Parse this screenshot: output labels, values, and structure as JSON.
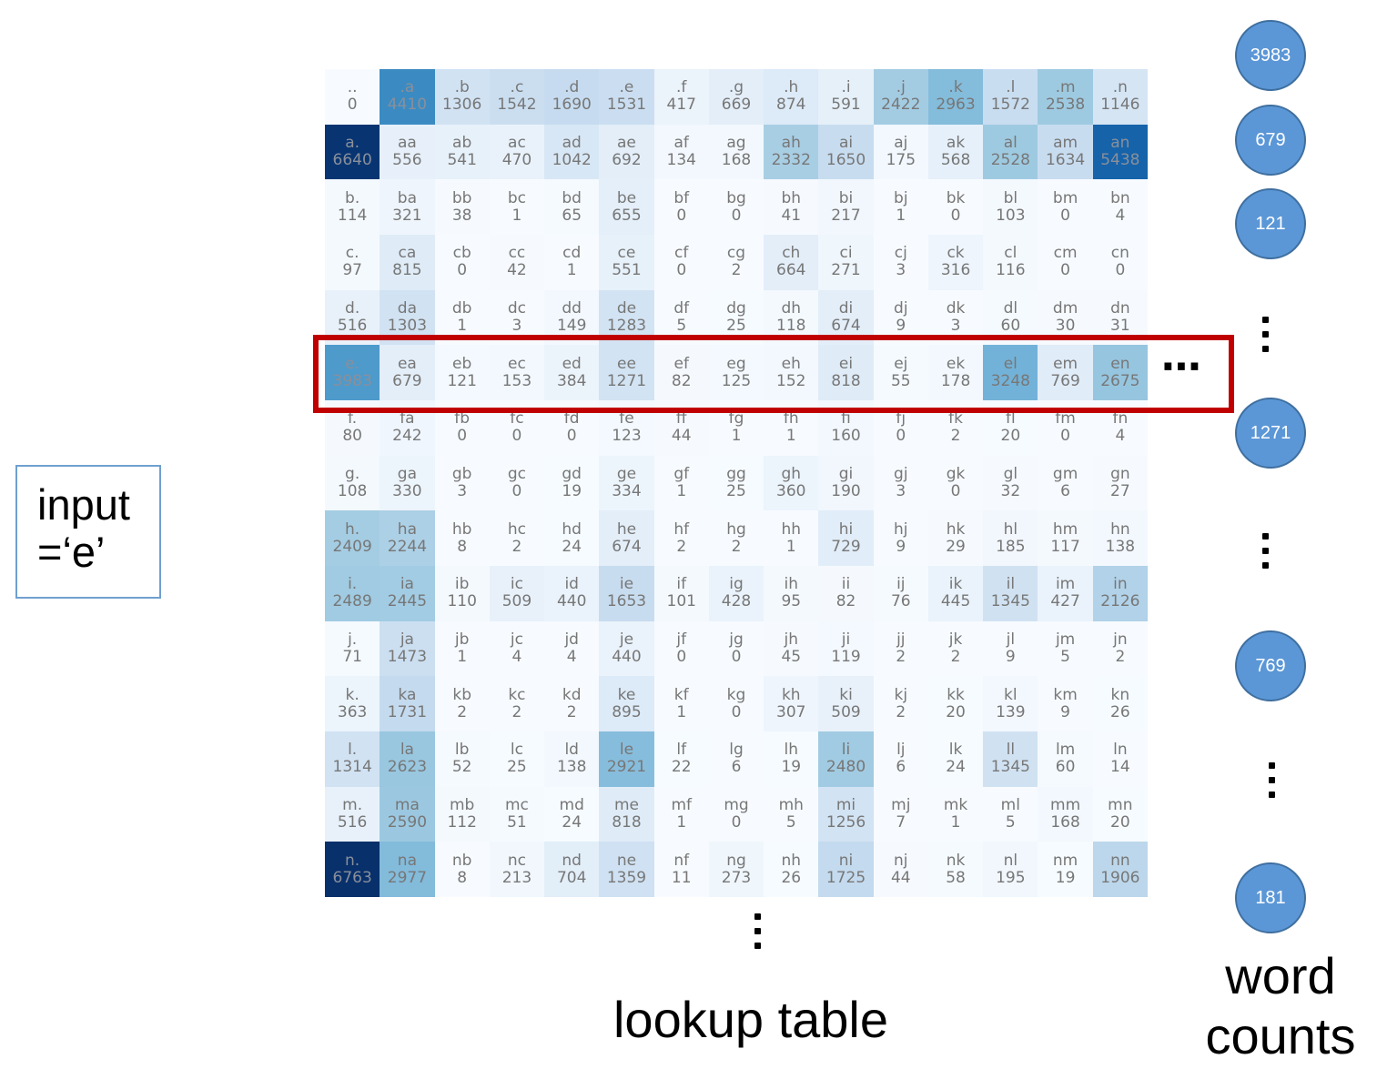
{
  "lookup_table": {
    "row_chars": [
      ".",
      "a",
      "b",
      "c",
      "d",
      "e",
      "f",
      "g",
      "h",
      "i",
      "j",
      "k",
      "l",
      "m",
      "n"
    ],
    "col_chars": [
      ".",
      "a",
      "b",
      "c",
      "d",
      "e",
      "f",
      "g",
      "h",
      "i",
      "j",
      "k",
      "l",
      "m",
      "n"
    ],
    "highlighted_row_label": "e",
    "counts": [
      [
        0,
        4410,
        1306,
        1542,
        1690,
        1531,
        417,
        669,
        874,
        591,
        2422,
        2963,
        1572,
        2538,
        1146
      ],
      [
        6640,
        556,
        541,
        470,
        1042,
        692,
        134,
        168,
        2332,
        1650,
        175,
        568,
        2528,
        1634,
        5438
      ],
      [
        114,
        321,
        38,
        1,
        65,
        655,
        0,
        0,
        41,
        217,
        1,
        0,
        103,
        0,
        4
      ],
      [
        97,
        815,
        0,
        42,
        1,
        551,
        0,
        2,
        664,
        271,
        3,
        316,
        116,
        0,
        0
      ],
      [
        516,
        1303,
        1,
        3,
        149,
        1283,
        5,
        25,
        118,
        674,
        9,
        3,
        60,
        30,
        31
      ],
      [
        3983,
        679,
        121,
        153,
        384,
        1271,
        82,
        125,
        152,
        818,
        55,
        178,
        3248,
        769,
        2675
      ],
      [
        80,
        242,
        0,
        0,
        0,
        123,
        44,
        1,
        1,
        160,
        0,
        2,
        20,
        0,
        4
      ],
      [
        108,
        330,
        3,
        0,
        19,
        334,
        1,
        25,
        360,
        190,
        3,
        0,
        32,
        6,
        27
      ],
      [
        2409,
        2244,
        8,
        2,
        24,
        674,
        2,
        2,
        1,
        729,
        9,
        29,
        185,
        117,
        138
      ],
      [
        2489,
        2445,
        110,
        509,
        440,
        1653,
        101,
        428,
        95,
        82,
        76,
        445,
        1345,
        427,
        2126
      ],
      [
        71,
        1473,
        1,
        4,
        4,
        440,
        0,
        0,
        45,
        119,
        2,
        2,
        9,
        5,
        2
      ],
      [
        363,
        1731,
        2,
        2,
        2,
        895,
        1,
        0,
        307,
        509,
        2,
        20,
        139,
        9,
        26
      ],
      [
        1314,
        2623,
        52,
        25,
        138,
        2921,
        22,
        6,
        19,
        2480,
        6,
        24,
        1345,
        60,
        14
      ],
      [
        516,
        2590,
        112,
        51,
        24,
        818,
        1,
        0,
        5,
        1256,
        7,
        1,
        5,
        168,
        20
      ],
      [
        6763,
        2977,
        8,
        213,
        704,
        1359,
        11,
        273,
        26,
        1725,
        44,
        58,
        195,
        19,
        1906
      ]
    ],
    "max_count": 6763,
    "cmap": "Blues"
  },
  "input_label": {
    "line1": "input",
    "line2": "=‘e’"
  },
  "word_counts": {
    "values": [
      "3983",
      "679",
      "121",
      "1271",
      "769",
      "181"
    ],
    "caption_line1": "word",
    "caption_line2": "counts"
  },
  "lookup_caption": "lookup table",
  "colors": {
    "highlight": "#c00000",
    "circle_fill": "#5b97d7",
    "input_border": "#6fa0cf"
  }
}
